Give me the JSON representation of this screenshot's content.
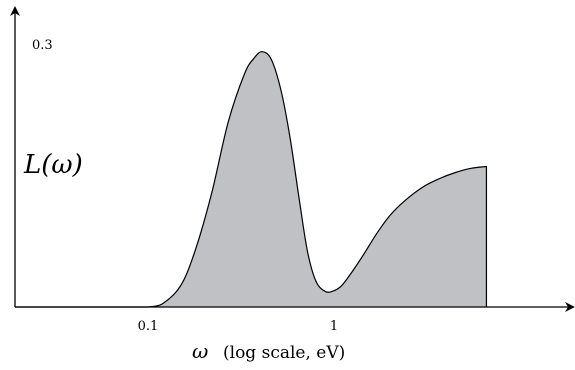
{
  "chart_data": {
    "type": "area",
    "x_scale": "log",
    "xlim": [
      0.02,
      10
    ],
    "ylim": [
      0,
      0.3
    ],
    "x_ticks": [
      {
        "value": 0.1,
        "label": "0.1"
      },
      {
        "value": 1,
        "label": "1"
      }
    ],
    "y_ticks": [
      {
        "value": 0.3,
        "label": "0.3"
      }
    ],
    "ylabel": "L(ω)",
    "xlabel_symbol": "ω",
    "xlabel_text": "(log scale, eV)",
    "grid": false,
    "legend": "none",
    "fill_color": "#c0c1c5",
    "stroke_color": "#000000",
    "series": [
      {
        "x": [
          0.1,
          0.12,
          0.15,
          0.18,
          0.22,
          0.27,
          0.33,
          0.37,
          0.41,
          0.46,
          0.52,
          0.58,
          0.65,
          0.72,
          0.8,
          0.9,
          1.0,
          1.1,
          1.25,
          1.45,
          1.7,
          2.0,
          2.4,
          3.0,
          3.7,
          4.5,
          5.5,
          6.6
        ],
        "y": [
          0.0,
          0.004,
          0.025,
          0.067,
          0.133,
          0.216,
          0.272,
          0.29,
          0.298,
          0.289,
          0.252,
          0.198,
          0.126,
          0.065,
          0.03,
          0.018,
          0.019,
          0.025,
          0.041,
          0.062,
          0.086,
          0.107,
          0.124,
          0.14,
          0.15,
          0.157,
          0.162,
          0.164
        ]
      }
    ]
  }
}
